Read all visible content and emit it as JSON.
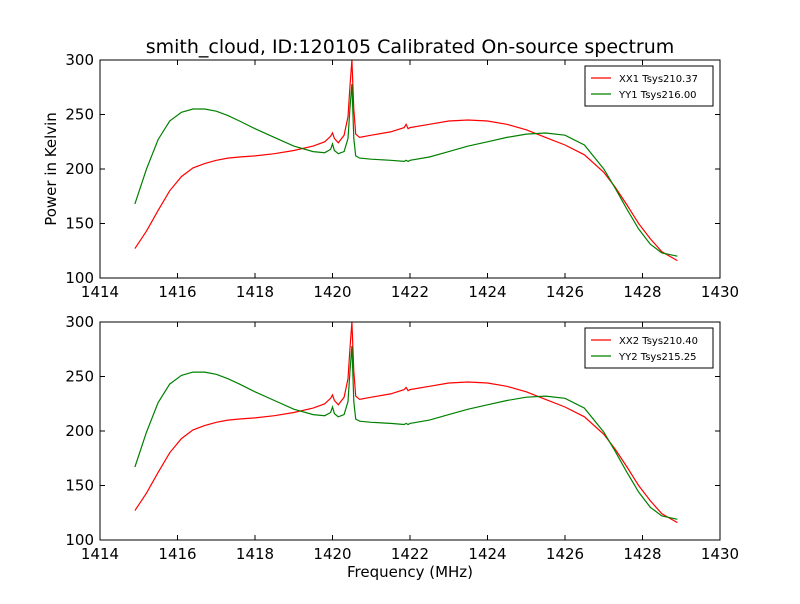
{
  "title": "smith_cloud, ID:120105 Calibrated On-source spectrum",
  "colors": {
    "xx": "#ff0000",
    "yy": "#008000"
  },
  "chart_data": [
    {
      "type": "line",
      "title": "smith_cloud, ID:120105 Calibrated On-source spectrum",
      "xlabel": "",
      "ylabel": "Power in Kelvin",
      "xlim": [
        1414,
        1430
      ],
      "ylim": [
        100,
        300
      ],
      "xticks": [
        1414,
        1416,
        1418,
        1420,
        1422,
        1424,
        1426,
        1428,
        1430
      ],
      "yticks": [
        100,
        150,
        200,
        250,
        300
      ],
      "grid": false,
      "legend": "top-right",
      "series": [
        {
          "name": "XX1 Tsys210.37",
          "color": "#ff0000",
          "x": [
            1414.9,
            1415.2,
            1415.5,
            1415.8,
            1416.1,
            1416.4,
            1416.7,
            1417.0,
            1417.3,
            1417.6,
            1418.0,
            1418.5,
            1419.0,
            1419.5,
            1419.8,
            1419.95,
            1420.0,
            1420.05,
            1420.15,
            1420.3,
            1420.4,
            1420.45,
            1420.5,
            1420.55,
            1420.6,
            1420.7,
            1421.0,
            1421.5,
            1421.85,
            1421.9,
            1421.95,
            1422.0,
            1422.5,
            1423.0,
            1423.5,
            1424.0,
            1424.5,
            1425.0,
            1425.5,
            1426.0,
            1426.5,
            1427.0,
            1427.3,
            1427.6,
            1427.9,
            1428.2,
            1428.5,
            1428.9
          ],
          "y": [
            127,
            143,
            162,
            180,
            193,
            201,
            205,
            208,
            210,
            211,
            212,
            214,
            217,
            221,
            225,
            230,
            233,
            228,
            224,
            231,
            248,
            275,
            300,
            255,
            232,
            229,
            231,
            234,
            238,
            241,
            237,
            238,
            241,
            244,
            245,
            244,
            241,
            236,
            229,
            222,
            213,
            197,
            183,
            167,
            150,
            136,
            124,
            116
          ]
        },
        {
          "name": "YY1 Tsys216.00",
          "color": "#008000",
          "x": [
            1414.9,
            1415.2,
            1415.5,
            1415.8,
            1416.1,
            1416.4,
            1416.7,
            1417.0,
            1417.3,
            1417.6,
            1418.0,
            1418.5,
            1419.0,
            1419.5,
            1419.8,
            1419.95,
            1420.0,
            1420.05,
            1420.15,
            1420.3,
            1420.4,
            1420.45,
            1420.5,
            1420.55,
            1420.6,
            1420.7,
            1421.0,
            1421.5,
            1421.85,
            1421.9,
            1421.95,
            1422.0,
            1422.5,
            1423.0,
            1423.5,
            1424.0,
            1424.5,
            1425.0,
            1425.5,
            1426.0,
            1426.5,
            1427.0,
            1427.3,
            1427.6,
            1427.9,
            1428.2,
            1428.5,
            1428.9
          ],
          "y": [
            168,
            200,
            227,
            244,
            252,
            255,
            255,
            253,
            249,
            244,
            237,
            229,
            221,
            216,
            215,
            218,
            223,
            217,
            214,
            216,
            228,
            255,
            278,
            228,
            212,
            210,
            209,
            208,
            207,
            208,
            207,
            208,
            211,
            216,
            221,
            225,
            229,
            232,
            233,
            231,
            222,
            200,
            182,
            163,
            145,
            131,
            123,
            120
          ]
        }
      ]
    },
    {
      "type": "line",
      "title": "",
      "xlabel": "Frequency (MHz)",
      "ylabel": "",
      "xlim": [
        1414,
        1430
      ],
      "ylim": [
        100,
        300
      ],
      "xticks": [
        1414,
        1416,
        1418,
        1420,
        1422,
        1424,
        1426,
        1428,
        1430
      ],
      "yticks": [
        100,
        150,
        200,
        250,
        300
      ],
      "grid": false,
      "legend": "top-right",
      "series": [
        {
          "name": "XX2 Tsys210.40",
          "color": "#ff0000",
          "x": [
            1414.9,
            1415.2,
            1415.5,
            1415.8,
            1416.1,
            1416.4,
            1416.7,
            1417.0,
            1417.3,
            1417.6,
            1418.0,
            1418.5,
            1419.0,
            1419.5,
            1419.8,
            1419.95,
            1420.0,
            1420.05,
            1420.15,
            1420.3,
            1420.4,
            1420.45,
            1420.5,
            1420.55,
            1420.6,
            1420.7,
            1421.0,
            1421.5,
            1421.85,
            1421.9,
            1421.95,
            1422.0,
            1422.5,
            1423.0,
            1423.5,
            1424.0,
            1424.5,
            1425.0,
            1425.5,
            1426.0,
            1426.5,
            1427.0,
            1427.3,
            1427.6,
            1427.9,
            1428.2,
            1428.5,
            1428.9
          ],
          "y": [
            127,
            143,
            162,
            180,
            193,
            201,
            205,
            208,
            210,
            211,
            212,
            214,
            217,
            221,
            225,
            230,
            233,
            228,
            224,
            231,
            248,
            275,
            300,
            255,
            232,
            229,
            231,
            234,
            238,
            240,
            237,
            238,
            241,
            244,
            245,
            244,
            241,
            236,
            229,
            222,
            213,
            197,
            183,
            167,
            150,
            136,
            124,
            116
          ]
        },
        {
          "name": "YY2 Tsys215.25",
          "color": "#008000",
          "x": [
            1414.9,
            1415.2,
            1415.5,
            1415.8,
            1416.1,
            1416.4,
            1416.7,
            1417.0,
            1417.3,
            1417.6,
            1418.0,
            1418.5,
            1419.0,
            1419.5,
            1419.8,
            1419.95,
            1420.0,
            1420.05,
            1420.15,
            1420.3,
            1420.4,
            1420.45,
            1420.5,
            1420.55,
            1420.6,
            1420.7,
            1421.0,
            1421.5,
            1421.85,
            1421.9,
            1421.95,
            1422.0,
            1422.5,
            1423.0,
            1423.5,
            1424.0,
            1424.5,
            1425.0,
            1425.5,
            1426.0,
            1426.5,
            1427.0,
            1427.3,
            1427.6,
            1427.9,
            1428.2,
            1428.5,
            1428.9
          ],
          "y": [
            167,
            199,
            226,
            243,
            251,
            254,
            254,
            252,
            248,
            243,
            236,
            228,
            220,
            215,
            214,
            217,
            222,
            216,
            213,
            215,
            227,
            254,
            278,
            227,
            211,
            209,
            208,
            207,
            206,
            207,
            206,
            207,
            210,
            215,
            220,
            224,
            228,
            231,
            232,
            230,
            221,
            199,
            181,
            162,
            144,
            130,
            122,
            119
          ]
        }
      ]
    }
  ]
}
